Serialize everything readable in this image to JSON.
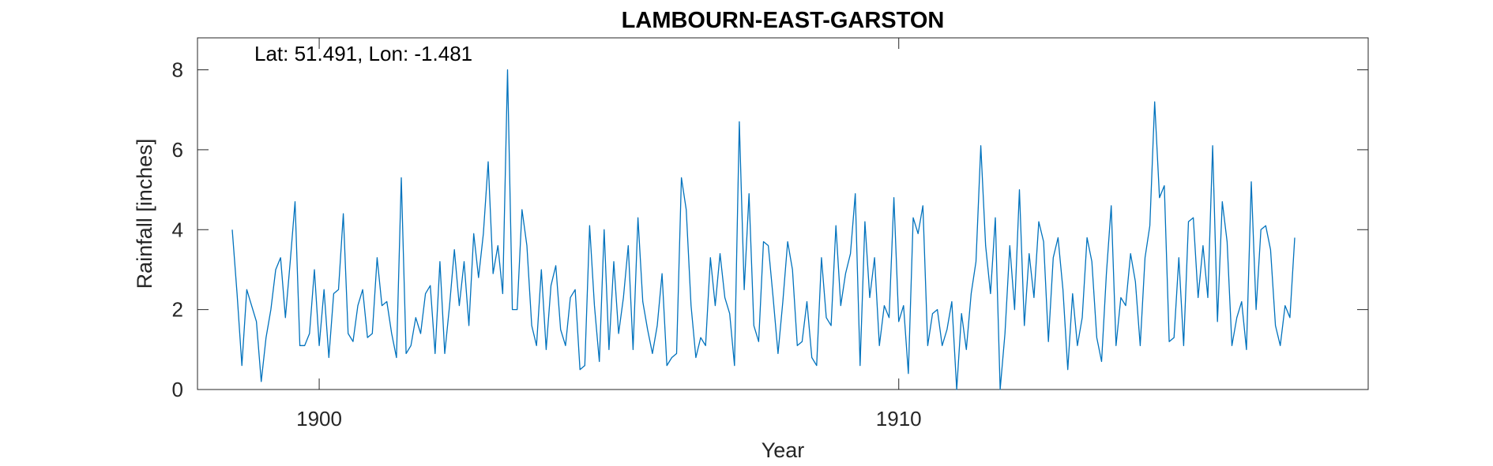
{
  "chart_data": {
    "type": "line",
    "title": "LAMBOURN-EAST-GARSTON",
    "annotation": "Lat: 51.491, Lon: -1.481",
    "xlabel": "Year",
    "ylabel": "Rainfall [inches]",
    "xlim": [
      1897.9,
      1918.1
    ],
    "ylim": [
      0,
      8.8
    ],
    "xticks": [
      1900,
      1910
    ],
    "xtick_labels": [
      "1900",
      "1910"
    ],
    "yticks": [
      0,
      2,
      4,
      6,
      8
    ],
    "ytick_labels": [
      "0",
      "2",
      "4",
      "6",
      "8"
    ],
    "grid": false,
    "series": [
      {
        "color": "#0072BD",
        "x_start": 1898.5,
        "x_step": 0.08333,
        "values": [
          4.0,
          2.4,
          0.6,
          2.5,
          2.1,
          1.7,
          0.2,
          1.3,
          2.0,
          3.0,
          3.3,
          1.8,
          3.2,
          4.7,
          1.1,
          1.1,
          1.4,
          3.0,
          1.1,
          2.5,
          0.8,
          2.4,
          2.5,
          4.4,
          1.4,
          1.2,
          2.1,
          2.5,
          1.3,
          1.4,
          3.3,
          2.1,
          2.2,
          1.4,
          0.8,
          5.3,
          0.9,
          1.1,
          1.8,
          1.4,
          2.4,
          2.6,
          0.9,
          3.2,
          0.9,
          2.1,
          3.5,
          2.1,
          3.2,
          1.6,
          3.9,
          2.8,
          3.9,
          5.7,
          2.9,
          3.6,
          2.4,
          8.0,
          2.0,
          2.0,
          4.5,
          3.6,
          1.6,
          1.1,
          3.0,
          1.0,
          2.6,
          3.1,
          1.5,
          1.1,
          2.3,
          2.5,
          0.5,
          0.6,
          4.1,
          2.1,
          0.7,
          4.0,
          1.0,
          3.2,
          1.4,
          2.3,
          3.6,
          1.0,
          4.3,
          2.2,
          1.5,
          0.9,
          1.6,
          2.9,
          0.6,
          0.8,
          0.9,
          5.3,
          4.5,
          2.1,
          0.8,
          1.3,
          1.1,
          3.3,
          2.1,
          3.4,
          2.3,
          1.9,
          0.6,
          6.7,
          2.5,
          4.9,
          1.6,
          1.2,
          3.7,
          3.6,
          2.3,
          0.9,
          2.2,
          3.7,
          3.0,
          1.1,
          1.2,
          2.2,
          0.8,
          0.6,
          3.3,
          1.8,
          1.6,
          4.1,
          2.1,
          2.9,
          3.4,
          4.9,
          0.6,
          4.2,
          2.3,
          3.3,
          1.1,
          2.1,
          1.8,
          4.8,
          1.7,
          2.1,
          0.4,
          4.3,
          3.9,
          4.6,
          1.1,
          1.9,
          2.0,
          1.1,
          1.5,
          2.2,
          0.0,
          1.9,
          1.0,
          2.4,
          3.2,
          6.1,
          3.6,
          2.4,
          4.3,
          0.0,
          1.4,
          3.6,
          2.0,
          5.0,
          1.6,
          3.4,
          2.3,
          4.2,
          3.7,
          1.2,
          3.3,
          3.8,
          2.5,
          0.5,
          2.4,
          1.1,
          1.8,
          3.8,
          3.2,
          1.3,
          0.7,
          2.9,
          4.6,
          1.1,
          2.3,
          2.1,
          3.4,
          2.7,
          1.1,
          3.3,
          4.1,
          7.2,
          4.8,
          5.1,
          1.2,
          1.3,
          3.3,
          1.1,
          4.2,
          4.3,
          2.3,
          3.6,
          2.3,
          6.1,
          1.7,
          4.7,
          3.7,
          1.1,
          1.8,
          2.2,
          1.0,
          5.2,
          2.0,
          4.0,
          4.1,
          3.5,
          1.6,
          1.1,
          2.1,
          1.8,
          3.8
        ]
      }
    ]
  }
}
